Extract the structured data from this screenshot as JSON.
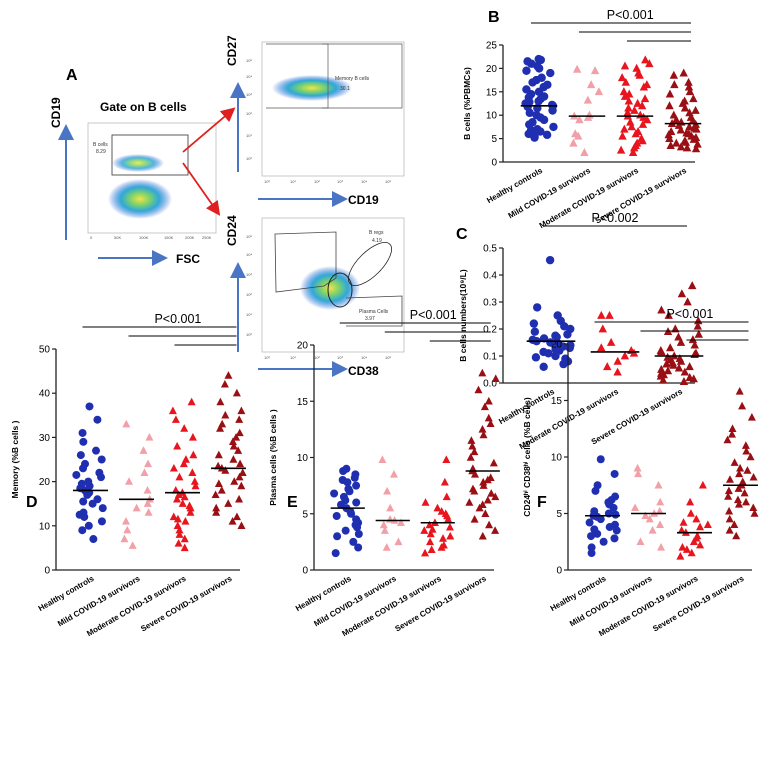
{
  "colors": {
    "healthy": "#1f2fb0",
    "mild": "#f2a0a8",
    "moderate": "#e8141e",
    "severe": "#9a0f14",
    "arrow_blue": "#4a74c4",
    "arrow_red": "#e02020",
    "axis": "#222222"
  },
  "flow_panel": {
    "letter": "A",
    "title": "Gate on B cells",
    "plot1": {
      "x_axis": "FSC",
      "y_axis": "CD19",
      "gate_label": "B cells",
      "gate_value": "8.29",
      "x_ticks": [
        "0",
        "50K",
        "100K",
        "150K",
        "200K",
        "250K"
      ]
    },
    "plot2": {
      "x_axis": "CD19",
      "y_axis": "CD27",
      "gate_label": "Memory B cells",
      "gate_value": "30.1"
    },
    "plot3": {
      "x_axis": "CD38",
      "y_axis": "CD24",
      "gate1_label": "B regs",
      "gate1_value": "4.19",
      "gate2_label": "Plasma Cells",
      "gate2_value": "3.97"
    },
    "log_ticks": [
      "10⁰",
      "10¹",
      "10²",
      "10³",
      "10⁴",
      "10⁵"
    ]
  },
  "chart_data": [
    {
      "id": "B",
      "letter": "B",
      "type": "scatter",
      "ylabel": "B cells (%PBMCs)",
      "ylim": [
        0,
        25
      ],
      "yticks": [
        0,
        5,
        10,
        15,
        20,
        25
      ],
      "categories": [
        "Healthy controls",
        "Mild COVID-19 survivors",
        "Moderate COVID-19 survivors",
        "Severe COVID-19 survivors"
      ],
      "groups": [
        "healthy",
        "mild",
        "moderate",
        "severe"
      ],
      "medians": [
        12,
        9.8,
        9.8,
        8.2
      ],
      "series": [
        {
          "name": "Healthy controls",
          "values": [
            22,
            21.8,
            21.5,
            21,
            20.5,
            20,
            19.5,
            19,
            18,
            17.5,
            17,
            16.5,
            16,
            15.5,
            15,
            14.5,
            14,
            13.8,
            13.5,
            13,
            12.8,
            12.5,
            12.2,
            12,
            11.8,
            11.5,
            11,
            10.5,
            10,
            9.5,
            9,
            8.5,
            8,
            7.5,
            7,
            6.8,
            6.5,
            6.2,
            6,
            5.8,
            5.5,
            5.2
          ]
        },
        {
          "name": "Mild COVID-19 survivors",
          "values": [
            19.8,
            19.5,
            16.5,
            15,
            13.2,
            10,
            9.8,
            9.5,
            9,
            6,
            5.5,
            4,
            2
          ]
        },
        {
          "name": "Moderate COVID-19 survivors",
          "values": [
            21.8,
            21,
            20.5,
            20,
            19,
            18.5,
            18,
            17,
            16.5,
            16,
            15,
            14.5,
            14,
            13.5,
            13,
            12.5,
            12,
            11.5,
            11,
            10.5,
            10,
            9.8,
            9.5,
            9,
            8.5,
            8,
            7.5,
            7,
            6.5,
            6,
            5.5,
            5,
            4.5,
            4,
            3.5,
            3,
            2.5,
            2
          ]
        },
        {
          "name": "Severe COVID-19 survivors",
          "values": [
            19,
            18.5,
            17,
            16.5,
            16,
            15,
            14.5,
            13.5,
            13,
            12.5,
            12,
            11.5,
            11,
            10.5,
            10,
            9.5,
            9,
            8.8,
            8.5,
            8.2,
            8,
            7.8,
            7.5,
            7.2,
            7,
            6.8,
            6.5,
            6.2,
            6,
            5.8,
            5.5,
            5.2,
            5,
            4.8,
            4.5,
            4.2,
            4,
            3.8,
            3.5,
            3.2,
            3,
            2.8
          ]
        }
      ],
      "sig": [
        {
          "from": 0,
          "to": 3,
          "level": 0,
          "label": "P<0.001"
        },
        {
          "from": 1,
          "to": 3,
          "level": 1,
          "label": ""
        },
        {
          "from": 2,
          "to": 3,
          "level": 2,
          "label": ""
        }
      ]
    },
    {
      "id": "C",
      "letter": "C",
      "type": "scatter",
      "ylabel": "B cells numbers(10⁹/L)",
      "ylim": [
        0,
        0.5
      ],
      "yticks": [
        "0.0",
        "0.1",
        "0.2",
        "0.3",
        "0.4",
        "0.5"
      ],
      "categories": [
        "Healthy controls",
        "Moderate COVID-19 survivors",
        "Severe COVID-19 survivors"
      ],
      "groups": [
        "healthy",
        "moderate",
        "severe"
      ],
      "medians": [
        0.155,
        0.115,
        0.1
      ],
      "series": [
        {
          "name": "Healthy controls",
          "values": [
            0.455,
            0.28,
            0.25,
            0.23,
            0.22,
            0.21,
            0.2,
            0.19,
            0.18,
            0.175,
            0.17,
            0.165,
            0.16,
            0.155,
            0.15,
            0.145,
            0.14,
            0.135,
            0.13,
            0.125,
            0.12,
            0.115,
            0.11,
            0.1,
            0.095,
            0.09,
            0.08,
            0.07,
            0.06
          ]
        },
        {
          "name": "Moderate COVID-19 survivors",
          "values": [
            0.25,
            0.25,
            0.2,
            0.15,
            0.13,
            0.12,
            0.11,
            0.1,
            0.08,
            0.06,
            0.04
          ]
        },
        {
          "name": "Severe COVID-19 survivors",
          "values": [
            0.36,
            0.33,
            0.3,
            0.27,
            0.25,
            0.23,
            0.21,
            0.2,
            0.19,
            0.18,
            0.17,
            0.16,
            0.15,
            0.14,
            0.13,
            0.12,
            0.115,
            0.11,
            0.105,
            0.1,
            0.095,
            0.09,
            0.085,
            0.08,
            0.075,
            0.07,
            0.065,
            0.06,
            0.055,
            0.05,
            0.045,
            0.04,
            0.035,
            0.03,
            0.025,
            0.02,
            0.015,
            0.01,
            0.005
          ]
        }
      ],
      "sig": [
        {
          "from": 0,
          "to": 2,
          "level": 0,
          "label": "P<0.002"
        }
      ]
    },
    {
      "id": "D",
      "letter": "D",
      "type": "scatter",
      "ylabel": "Memory   (%B cells )",
      "ylim": [
        0,
        50
      ],
      "yticks": [
        0,
        10,
        20,
        30,
        40,
        50
      ],
      "categories": [
        "Healthy controls",
        "Mild COVID-19 survivors",
        "Moderate COVID-19 survivors",
        "Severe COVID-19 survivors"
      ],
      "groups": [
        "healthy",
        "mild",
        "moderate",
        "severe"
      ],
      "medians": [
        18,
        16,
        17.5,
        23
      ],
      "series": [
        {
          "name": "Healthy controls",
          "values": [
            37,
            34,
            31,
            29,
            27,
            26,
            25,
            24,
            23,
            22,
            21.5,
            21,
            20,
            19.5,
            19,
            18.5,
            18,
            17.5,
            17,
            16,
            15.5,
            15,
            14,
            13,
            12.5,
            12,
            11,
            10,
            9,
            7
          ]
        },
        {
          "name": "Mild COVID-19 survivors",
          "values": [
            33,
            30,
            27,
            24,
            22,
            20,
            18,
            16,
            15,
            14,
            13,
            11,
            9,
            7,
            5.5
          ]
        },
        {
          "name": "Moderate COVID-19 survivors",
          "values": [
            38,
            36,
            34,
            32,
            30,
            28,
            26,
            25,
            24,
            23,
            22,
            21,
            20,
            19,
            18,
            17.5,
            17,
            16.5,
            16,
            15,
            14.5,
            14,
            13,
            12,
            11.5,
            11,
            10,
            9,
            8,
            7,
            6,
            5
          ]
        },
        {
          "name": "Severe COVID-19 survivors",
          "values": [
            44,
            42,
            40,
            38,
            36,
            35,
            34,
            33,
            32,
            31,
            30,
            29,
            28,
            27,
            26,
            25,
            24,
            23.5,
            23,
            22.5,
            22,
            21,
            20,
            19.5,
            19,
            18,
            17,
            16,
            15,
            14,
            13,
            12,
            11,
            10
          ]
        }
      ],
      "sig": [
        {
          "from": 0,
          "to": 3,
          "level": 0,
          "label": "P<0.001"
        },
        {
          "from": 1,
          "to": 3,
          "level": 1,
          "label": ""
        },
        {
          "from": 2,
          "to": 3,
          "level": 2,
          "label": ""
        }
      ]
    },
    {
      "id": "E",
      "letter": "E",
      "type": "scatter",
      "ylabel": "Plasma cells  (%B cells )",
      "ylim": [
        0,
        20
      ],
      "yticks": [
        0,
        5,
        10,
        15,
        20
      ],
      "categories": [
        "Healthy controls",
        "Mild COVID-19 survivors",
        "Moderate COVID-19 survivors",
        "Severe COVID-19 survivors"
      ],
      "groups": [
        "healthy",
        "mild",
        "moderate",
        "severe"
      ],
      "medians": [
        5.5,
        4.4,
        4.2,
        8.8
      ],
      "series": [
        {
          "name": "Healthy controls",
          "values": [
            9,
            8.8,
            8.5,
            8.2,
            8,
            7.8,
            7.5,
            7.2,
            7,
            6.8,
            6.5,
            6.2,
            6,
            5.8,
            5.5,
            5.2,
            5,
            4.8,
            4.5,
            4.2,
            4,
            3.8,
            3.5,
            3.2,
            3,
            2.5,
            2,
            1.5
          ]
        },
        {
          "name": "Mild COVID-19 survivors",
          "values": [
            9.8,
            8.5,
            7,
            5.5,
            4.5,
            4.4,
            4.2,
            4,
            3.5,
            2.5,
            2
          ]
        },
        {
          "name": "Moderate COVID-19 survivors",
          "values": [
            9.8,
            7.8,
            6.5,
            6,
            5.5,
            5.2,
            5,
            4.8,
            4.5,
            4.2,
            4,
            3.8,
            3.6,
            3.5,
            3.2,
            3,
            2.8,
            2.5,
            2.2,
            2,
            1.8,
            1.5
          ]
        },
        {
          "name": "Severe COVID-19 survivors",
          "values": [
            17.5,
            17,
            16,
            15,
            14.5,
            13.5,
            13,
            12.5,
            12,
            11.5,
            11,
            10.5,
            10,
            9.5,
            9,
            8.8,
            8.5,
            8.2,
            8,
            7.8,
            7.5,
            7.2,
            7,
            6.8,
            6.5,
            6.2,
            6,
            5.8,
            5.5,
            5,
            4.5,
            4,
            3.5,
            3
          ]
        }
      ],
      "sig": [
        {
          "from": 0,
          "to": 3,
          "level": 0,
          "label": "P<0.001"
        },
        {
          "from": 1,
          "to": 3,
          "level": 1,
          "label": ""
        },
        {
          "from": 2,
          "to": 3,
          "level": 2,
          "label": ""
        }
      ]
    },
    {
      "id": "F",
      "letter": "F",
      "type": "scatter",
      "ylabel": "CD24ʰⁱ CD38ʰⁱ cells  (%B cells)",
      "ylim": [
        0,
        20
      ],
      "yticks": [
        0,
        5,
        10,
        15,
        20
      ],
      "categories": [
        "Healthy controls",
        "Mild COVID-19 survivors",
        "Moderate COVID-19 survivors",
        "Severe COVID-19 survivors"
      ],
      "groups": [
        "healthy",
        "mild",
        "moderate",
        "severe"
      ],
      "medians": [
        4.8,
        5.0,
        3.3,
        7.5
      ],
      "series": [
        {
          "name": "Healthy controls",
          "values": [
            9.8,
            8.5,
            7.5,
            7,
            6.5,
            6.2,
            6,
            5.8,
            5.5,
            5.2,
            5,
            4.9,
            4.8,
            4.7,
            4.5,
            4.2,
            4,
            3.8,
            3.6,
            3.5,
            3.2,
            3,
            2.8,
            2.5,
            2,
            1.5
          ]
        },
        {
          "name": "Mild COVID-19 survivors",
          "values": [
            9,
            8.5,
            7.5,
            6,
            5.5,
            5.2,
            5,
            4.8,
            4.5,
            4,
            3.5,
            2.5,
            2
          ]
        },
        {
          "name": "Moderate COVID-19 survivors",
          "values": [
            7.5,
            6,
            5,
            4.5,
            4.2,
            4,
            3.8,
            3.5,
            3.3,
            3,
            2.8,
            2.5,
            2.2,
            2,
            1.8,
            1.5,
            1.2
          ]
        },
        {
          "name": "Severe COVID-19 survivors",
          "values": [
            15.8,
            14.5,
            13.5,
            12.5,
            12,
            11.5,
            11,
            10.5,
            10,
            9.5,
            9,
            8.8,
            8.5,
            8.2,
            8,
            7.8,
            7.5,
            7.2,
            7,
            6.8,
            6.5,
            6.2,
            6,
            5.8,
            5.5,
            5.2,
            5,
            4.5,
            4,
            3.5,
            3
          ]
        }
      ],
      "sig": [
        {
          "from": 0,
          "to": 3,
          "level": 0,
          "label": "P<0.001"
        },
        {
          "from": 1,
          "to": 3,
          "level": 1,
          "label": ""
        },
        {
          "from": 2,
          "to": 3,
          "level": 2,
          "label": ""
        }
      ]
    }
  ]
}
